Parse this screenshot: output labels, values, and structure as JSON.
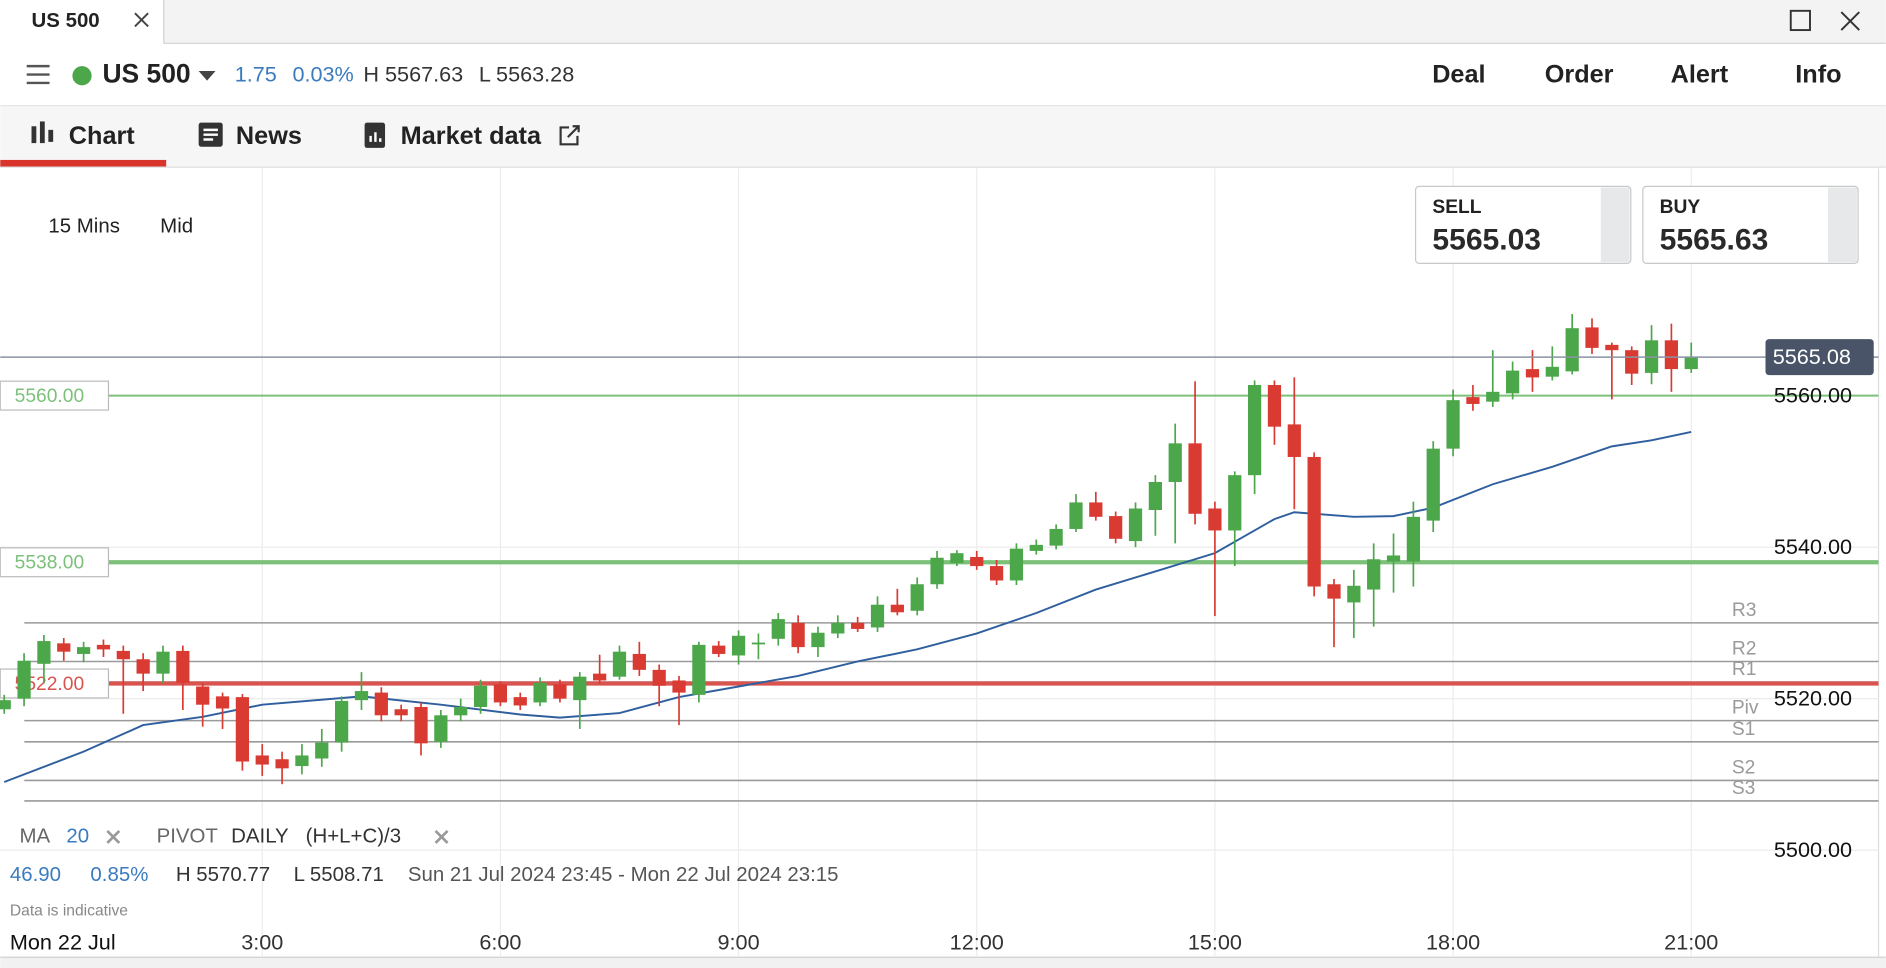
{
  "window": {
    "tab": "US 500"
  },
  "header": {
    "instrument": "US 500",
    "change": "1.75",
    "change_pct": "0.03%",
    "high": "H 5567.63",
    "low": "L 5563.28",
    "actions": [
      "Deal",
      "Order",
      "Alert",
      "Info"
    ]
  },
  "tabs": [
    "Chart",
    "News",
    "Market data"
  ],
  "toolbar": {
    "interval": "15 Mins",
    "price_type": "Mid"
  },
  "sell": {
    "label": "SELL",
    "price": "5565.03"
  },
  "buy": {
    "label": "BUY",
    "price": "5565.63"
  },
  "indicators": {
    "ma": "MA",
    "ma_period": "20",
    "pivot": "PIVOT",
    "pivot_period": "DAILY",
    "pivot_formula": "(H+L+C)/3"
  },
  "summary": {
    "change": "46.90",
    "change_pct": "0.85%",
    "high": "H 5570.77",
    "low": "L 5508.71",
    "range": "Sun 21 Jul 2024 23:45 - Mon 22 Jul 2024 23:15",
    "note": "Data is indicative",
    "date": "Mon 22 Jul"
  },
  "chart_data": {
    "type": "candlestick",
    "up_color": "#4ca64a",
    "down_color": "#d93a32",
    "x": [
      -0.25,
      0,
      0.25,
      0.5,
      0.75,
      1,
      1.25,
      1.5,
      1.75,
      2,
      2.25,
      2.5,
      2.75,
      3,
      3.25,
      3.5,
      3.75,
      4,
      4.25,
      4.5,
      4.75,
      5,
      5.25,
      5.5,
      5.75,
      6,
      6.25,
      6.5,
      6.75,
      7,
      7.25,
      7.5,
      7.75,
      8,
      8.25,
      8.5,
      8.75,
      9,
      9.25,
      9.5,
      9.75,
      10,
      10.25,
      10.5,
      10.75,
      11,
      11.25,
      11.5,
      11.75,
      12,
      12.25,
      12.5,
      12.75,
      13,
      13.25,
      13.5,
      13.75,
      14,
      14.25,
      14.5,
      14.75,
      15,
      15.25,
      15.5,
      15.75,
      16,
      16.25,
      16.5,
      16.75,
      17,
      17.25,
      17.5,
      17.75,
      18,
      18.25,
      18.5,
      18.75,
      19,
      19.25,
      19.5,
      19.75,
      20,
      20.25,
      20.5,
      20.75,
      21
    ],
    "open": [
      5518.6,
      5520,
      5524.6,
      5527.3,
      5525.9,
      5527.1,
      5526.3,
      5525.2,
      5523.3,
      5526.3,
      5521.6,
      5520.3,
      5520.2,
      5512.5,
      5512,
      5511.1,
      5512.1,
      5514.2,
      5519.8,
      5520.8,
      5518.6,
      5518.9,
      5514.3,
      5517.8,
      5518.9,
      5521.9,
      5520.2,
      5519.5,
      5521.9,
      5519.8,
      5523.3,
      5522.9,
      5525.9,
      5523.8,
      5522.4,
      5520.5,
      5527,
      5525.7,
      5527.3,
      5527.9,
      5530,
      5526.8,
      5528.6,
      5530,
      5529.4,
      5532.4,
      5531.6,
      5535.1,
      5537.9,
      5538.7,
      5537.5,
      5535.6,
      5539.5,
      5540.2,
      5542.4,
      5545.9,
      5544.1,
      5540.8,
      5544.9,
      5548.6,
      5553.7,
      5545.1,
      5542.2,
      5549.5,
      5561.4,
      5556.2,
      5551.9,
      5535.1,
      5532.7,
      5534.4,
      5538.1,
      5538.1,
      5543.5,
      5553,
      5559.8,
      5559.2,
      5560.3,
      5563.5,
      5562.5,
      5563.2,
      5569,
      5566.7,
      5566,
      5563,
      5567.3,
      5563.5
    ],
    "high": [
      5520.5,
      5526,
      5528.4,
      5528,
      5527.5,
      5527.8,
      5527,
      5526,
      5527,
      5527,
      5522,
      5520.8,
      5520.6,
      5514,
      5513,
      5514,
      5516,
      5520.3,
      5523.5,
      5521.5,
      5519.2,
      5519.5,
      5518.5,
      5520,
      5522.5,
      5522.3,
      5520.8,
      5522.8,
      5522.5,
      5523.5,
      5525.8,
      5527,
      5527.5,
      5524.5,
      5523,
      5527.5,
      5527.6,
      5529,
      5528.6,
      5531.3,
      5531,
      5529.5,
      5531,
      5530.8,
      5533.5,
      5534.5,
      5536,
      5539.5,
      5539.6,
      5539.5,
      5538.3,
      5540.5,
      5541,
      5543,
      5547,
      5547.3,
      5544.7,
      5545.9,
      5549.5,
      5556.3,
      5561.9,
      5546,
      5550,
      5562,
      5562,
      5562.4,
      5552.5,
      5535.8,
      5537,
      5540.5,
      5541.8,
      5546,
      5554,
      5560.8,
      5561.4,
      5566,
      5564.5,
      5566,
      5566.5,
      5570.77,
      5570.2,
      5567,
      5566.5,
      5569.3,
      5569.5,
      5567
    ],
    "low": [
      5518,
      5519,
      5522,
      5525,
      5524.8,
      5525.5,
      5518,
      5521,
      5522,
      5518.5,
      5516.3,
      5516,
      5510.5,
      5509.8,
      5508.71,
      5510,
      5511,
      5513,
      5518.5,
      5517,
      5517,
      5512.5,
      5513.5,
      5517,
      5518,
      5519,
      5518.5,
      5519,
      5519.5,
      5516,
      5522,
      5522.5,
      5523,
      5519,
      5516.5,
      5519.5,
      5525.5,
      5524.5,
      5525.2,
      5527,
      5526,
      5525.5,
      5528,
      5528.8,
      5528.8,
      5531,
      5531,
      5534.5,
      5537.5,
      5537,
      5535,
      5535,
      5539,
      5539.7,
      5542,
      5543.5,
      5540.5,
      5540,
      5541.5,
      5540.5,
      5543,
      5530.9,
      5537.5,
      5547,
      5553.5,
      5545,
      5533.5,
      5526.8,
      5528,
      5529.5,
      5534,
      5534.8,
      5542,
      5552,
      5558,
      5558.5,
      5559.5,
      5560.5,
      5562,
      5562.8,
      5565.5,
      5559.5,
      5561.4,
      5561.5,
      5560.5,
      5563
    ],
    "close": [
      5519.8,
      5525,
      5527.6,
      5526.2,
      5526.8,
      5526.5,
      5525.2,
      5523.3,
      5526.2,
      5522.1,
      5519.2,
      5518.7,
      5511.7,
      5511.3,
      5510.8,
      5512.5,
      5514.2,
      5519.7,
      5521,
      5517.8,
      5517.8,
      5514.1,
      5517.8,
      5518.9,
      5521.7,
      5519.5,
      5519.1,
      5522.1,
      5520,
      5522.9,
      5522.4,
      5526.2,
      5523.8,
      5521.7,
      5520.8,
      5527.1,
      5525.9,
      5528.3,
      5527.4,
      5530.5,
      5526.8,
      5528.7,
      5530,
      5529.2,
      5532.4,
      5531.4,
      5535.1,
      5538.6,
      5539.2,
      5537.5,
      5535.6,
      5539.8,
      5540.3,
      5542.4,
      5545.9,
      5544,
      5541.1,
      5545.1,
      5548.6,
      5553.7,
      5544.4,
      5542.2,
      5549.5,
      5561.4,
      5555.9,
      5551.9,
      5534.8,
      5533.2,
      5534.9,
      5538.4,
      5538.9,
      5544,
      5553,
      5559.4,
      5558.9,
      5560.5,
      5563.3,
      5562.4,
      5563.8,
      5568.9,
      5566.3,
      5566,
      5562.9,
      5567.3,
      5563.5,
      5565.08
    ],
    "ma": {
      "color": "#2f5f9e",
      "x": [
        -0.25,
        0.75,
        1.5,
        2.25,
        3,
        4.25,
        5.25,
        6.25,
        6.75,
        7.5,
        8.25,
        9,
        9.75,
        10.5,
        11.25,
        12,
        12.75,
        13.5,
        14.25,
        15,
        15.75,
        16,
        16.75,
        17.25,
        17.75,
        18.5,
        19.25,
        20,
        20.5,
        21
      ],
      "values": [
        5509,
        5513,
        5516.5,
        5517.6,
        5519.2,
        5520.3,
        5519.2,
        5517.9,
        5517.5,
        5518.1,
        5520.2,
        5521.6,
        5523,
        5524.9,
        5526.5,
        5528.6,
        5531.3,
        5534.4,
        5536.8,
        5539.2,
        5543.7,
        5544.6,
        5544,
        5544.1,
        5545.2,
        5548.3,
        5550.6,
        5553.3,
        5554.1,
        5555.2
      ]
    },
    "pivots": [
      {
        "label": "R3",
        "value": 5530
      },
      {
        "label": "R2",
        "value": 5524.9
      },
      {
        "label": "R1",
        "value": 5522.2
      },
      {
        "label": "Piv",
        "value": 5517.1
      },
      {
        "label": "S1",
        "value": 5514.3
      },
      {
        "label": "S2",
        "value": 5509.2
      },
      {
        "label": "S3",
        "value": 5506.5
      }
    ],
    "pivot_color": "#9a9a9a",
    "levels": [
      {
        "value": 5560,
        "label": "5560.00",
        "color": "#7cc07a"
      },
      {
        "value": 5538,
        "label": "5538.00",
        "color": "#7cc07a"
      },
      {
        "value": 5522,
        "label": "5522.00",
        "color": "#d9534f"
      }
    ],
    "current": {
      "value": 5565.08,
      "label": "5565.08"
    },
    "xlim": [
      -0.3,
      23.45
    ],
    "xticks": [
      {
        "value": 3,
        "label": "3:00"
      },
      {
        "value": 6,
        "label": "6:00"
      },
      {
        "value": 9,
        "label": "9:00"
      },
      {
        "value": 12,
        "label": "12:00"
      },
      {
        "value": 15,
        "label": "15:00"
      },
      {
        "value": 18,
        "label": "18:00"
      },
      {
        "value": 21,
        "label": "21:00"
      }
    ],
    "ylim": [
      5490,
      5590
    ],
    "yticks": [
      {
        "value": 5500,
        "label": "5500.00"
      },
      {
        "value": 5520,
        "label": "5520.00"
      },
      {
        "value": 5540,
        "label": "5540.00"
      },
      {
        "value": 5560,
        "label": "5560.00"
      }
    ],
    "grid": true
  }
}
